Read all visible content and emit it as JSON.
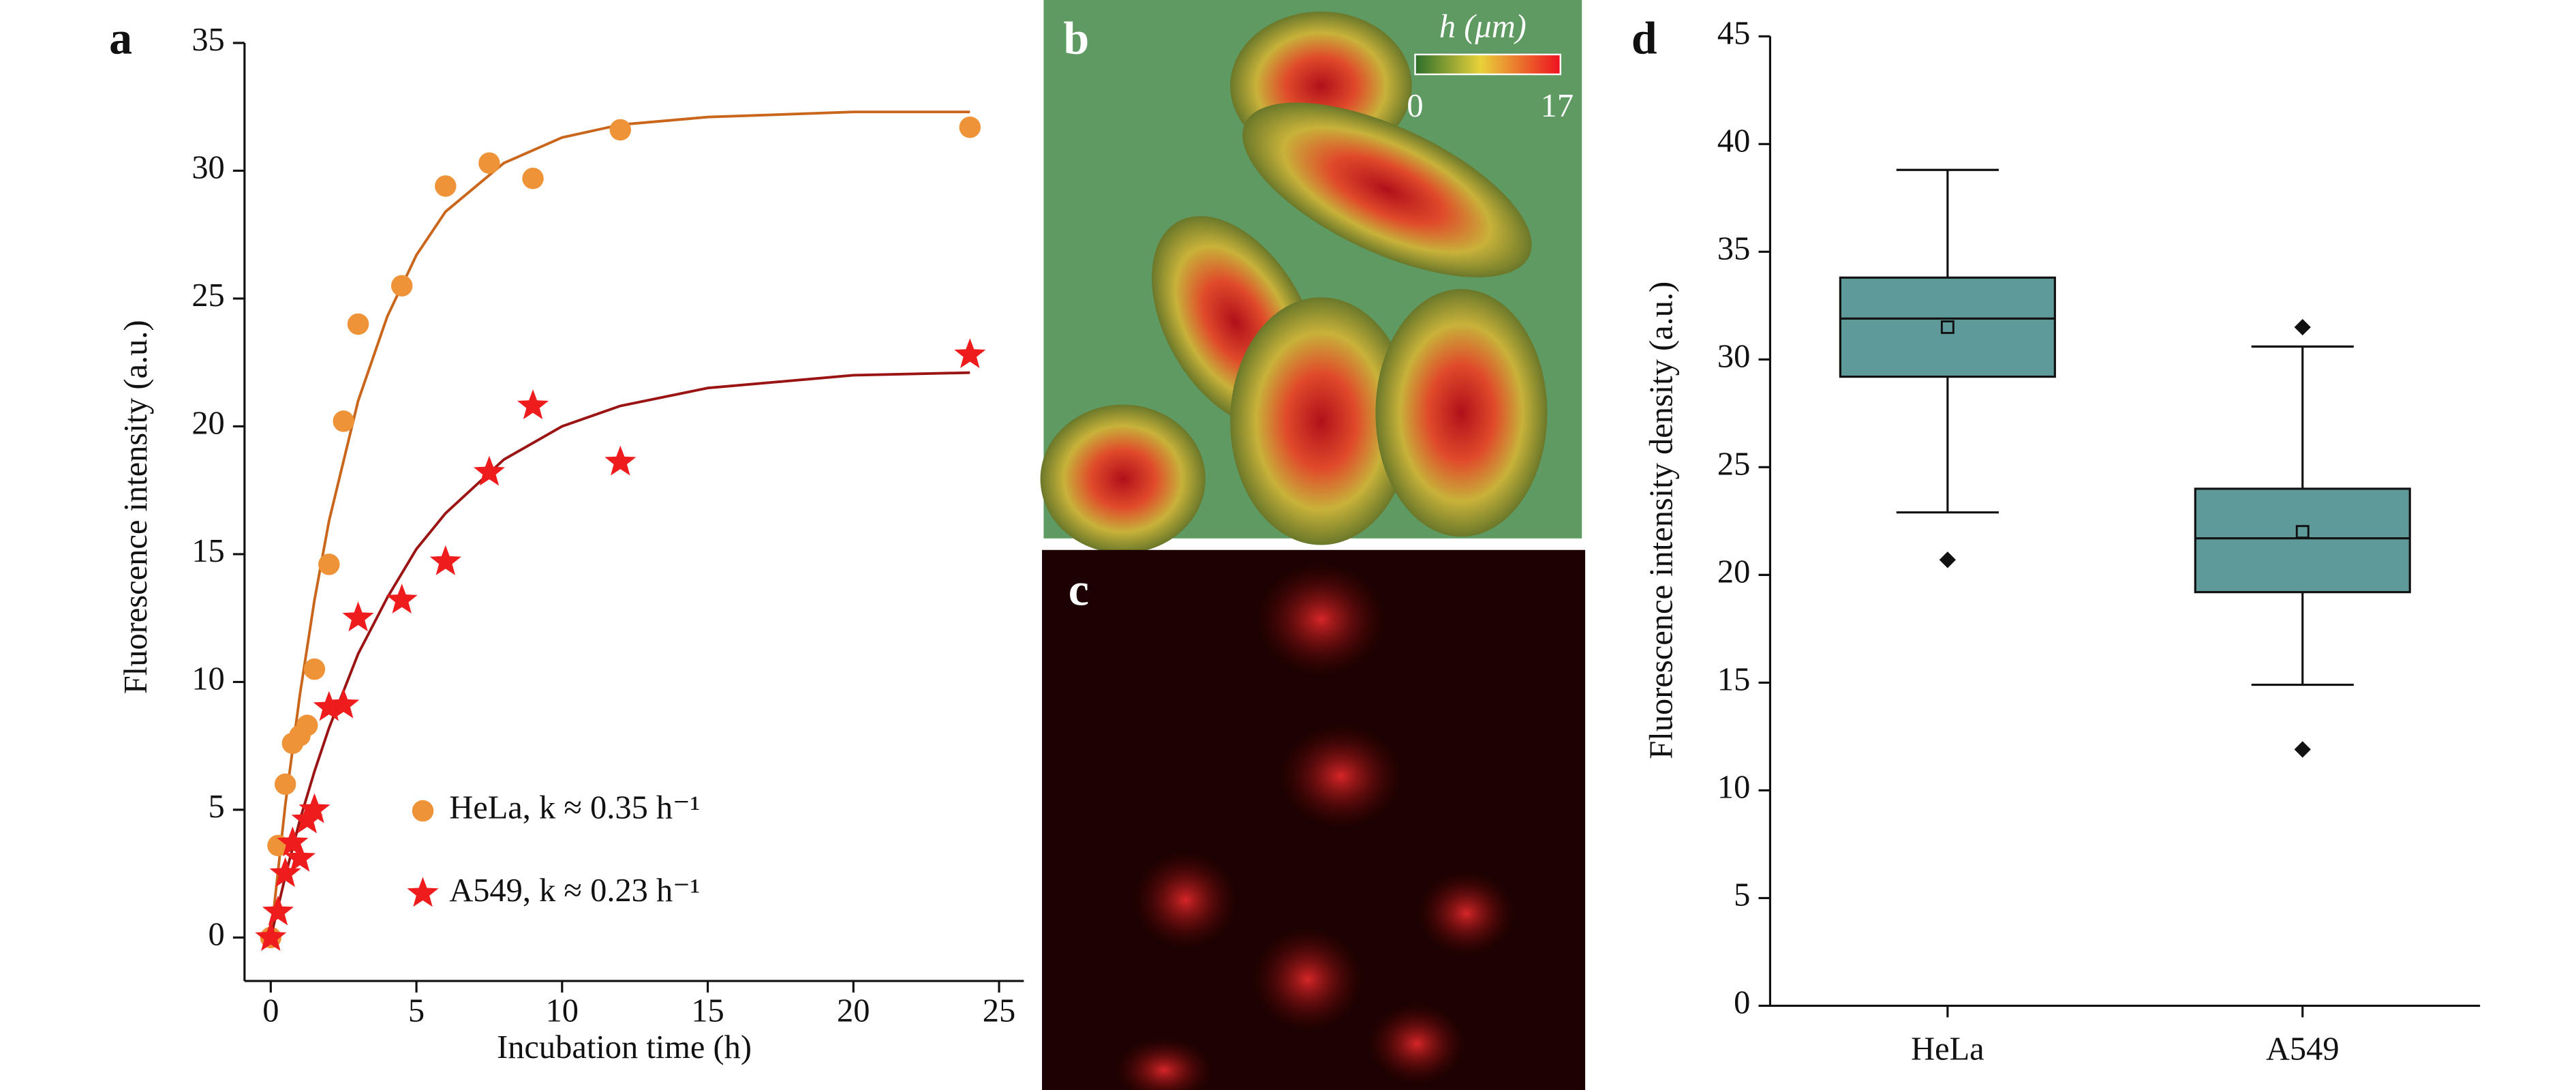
{
  "chart_data": [
    {
      "type": "scatter",
      "panel": "a",
      "xlabel": "Incubation time (h)",
      "ylabel": "Fluorescence intensity (a.u.)",
      "xlim": [
        -0.9,
        25.85
      ],
      "xticks": [
        0,
        5,
        10,
        15,
        20,
        25
      ],
      "ylim": [
        -1.7,
        35
      ],
      "yticks": [
        0,
        5,
        10,
        15,
        20,
        25,
        30,
        35
      ],
      "series": [
        {
          "name": "HeLa, k ≈ 0.35 h⁻¹",
          "color": "#ef9339",
          "marker": "circle",
          "x": [
            0,
            0.25,
            0.5,
            0.75,
            1,
            1.25,
            1.5,
            2,
            2.5,
            3,
            4.5,
            6,
            7.5,
            9,
            12,
            24
          ],
          "values": [
            0,
            3.6,
            6,
            7.6,
            7.9,
            8.3,
            10.5,
            14.6,
            20.2,
            24,
            25.5,
            29.4,
            30.3,
            29.7,
            31.6,
            31.7
          ],
          "fit_color": "#c9661c",
          "fit_x": [
            0,
            0.5,
            1,
            1.5,
            2,
            3,
            4,
            5,
            6,
            8,
            10,
            12,
            15,
            20,
            24
          ],
          "fit_values": [
            0,
            5.2,
            9.5,
            13.2,
            16.3,
            21,
            24.3,
            26.7,
            28.4,
            30.3,
            31.3,
            31.8,
            32.1,
            32.3,
            32.3
          ]
        },
        {
          "name": "A549, k ≈ 0.23 h⁻¹",
          "color": "#ee1c1c",
          "marker": "star",
          "x": [
            0,
            0.25,
            0.5,
            0.75,
            1,
            1.25,
            1.5,
            2,
            2.5,
            3,
            4.5,
            6,
            7.5,
            9,
            12,
            24
          ],
          "values": [
            0,
            1,
            2.5,
            3.7,
            3.1,
            4.6,
            5,
            9,
            9.1,
            12.5,
            13.2,
            14.7,
            18.2,
            20.8,
            18.6,
            22.8
          ],
          "fit_color": "#9b1414",
          "fit_x": [
            0,
            0.5,
            1,
            1.5,
            2,
            3,
            4,
            5,
            6,
            8,
            10,
            12,
            15,
            20,
            24
          ],
          "fit_values": [
            0,
            2.4,
            4.6,
            6.5,
            8.2,
            11.1,
            13.3,
            15.2,
            16.6,
            18.7,
            20,
            20.8,
            21.5,
            22,
            22.1
          ]
        }
      ]
    },
    {
      "type": "box",
      "panel": "d",
      "ylabel": "Fluorescence intensity density (a.u.)",
      "color": "#5f9a9b",
      "ylim": [
        0,
        45
      ],
      "yticks": [
        0,
        5,
        10,
        15,
        20,
        25,
        30,
        35,
        40,
        45
      ],
      "categories": [
        "HeLa",
        "A549"
      ],
      "boxes": [
        {
          "whislo": 22.9,
          "q1": 29.2,
          "med": 31.9,
          "q3": 33.8,
          "whishi": 38.8,
          "mean": 31.5,
          "fliers": [
            20.7
          ]
        },
        {
          "whislo": 14.9,
          "q1": 19.2,
          "med": 21.7,
          "q3": 24.0,
          "whishi": 30.6,
          "mean": 22.0,
          "fliers": [
            31.5,
            11.9
          ]
        }
      ]
    }
  ],
  "images": [
    {
      "panel": "b",
      "colorbar": {
        "title": "h (μm)",
        "range": [
          0,
          17
        ]
      }
    },
    {
      "panel": "c"
    }
  ]
}
